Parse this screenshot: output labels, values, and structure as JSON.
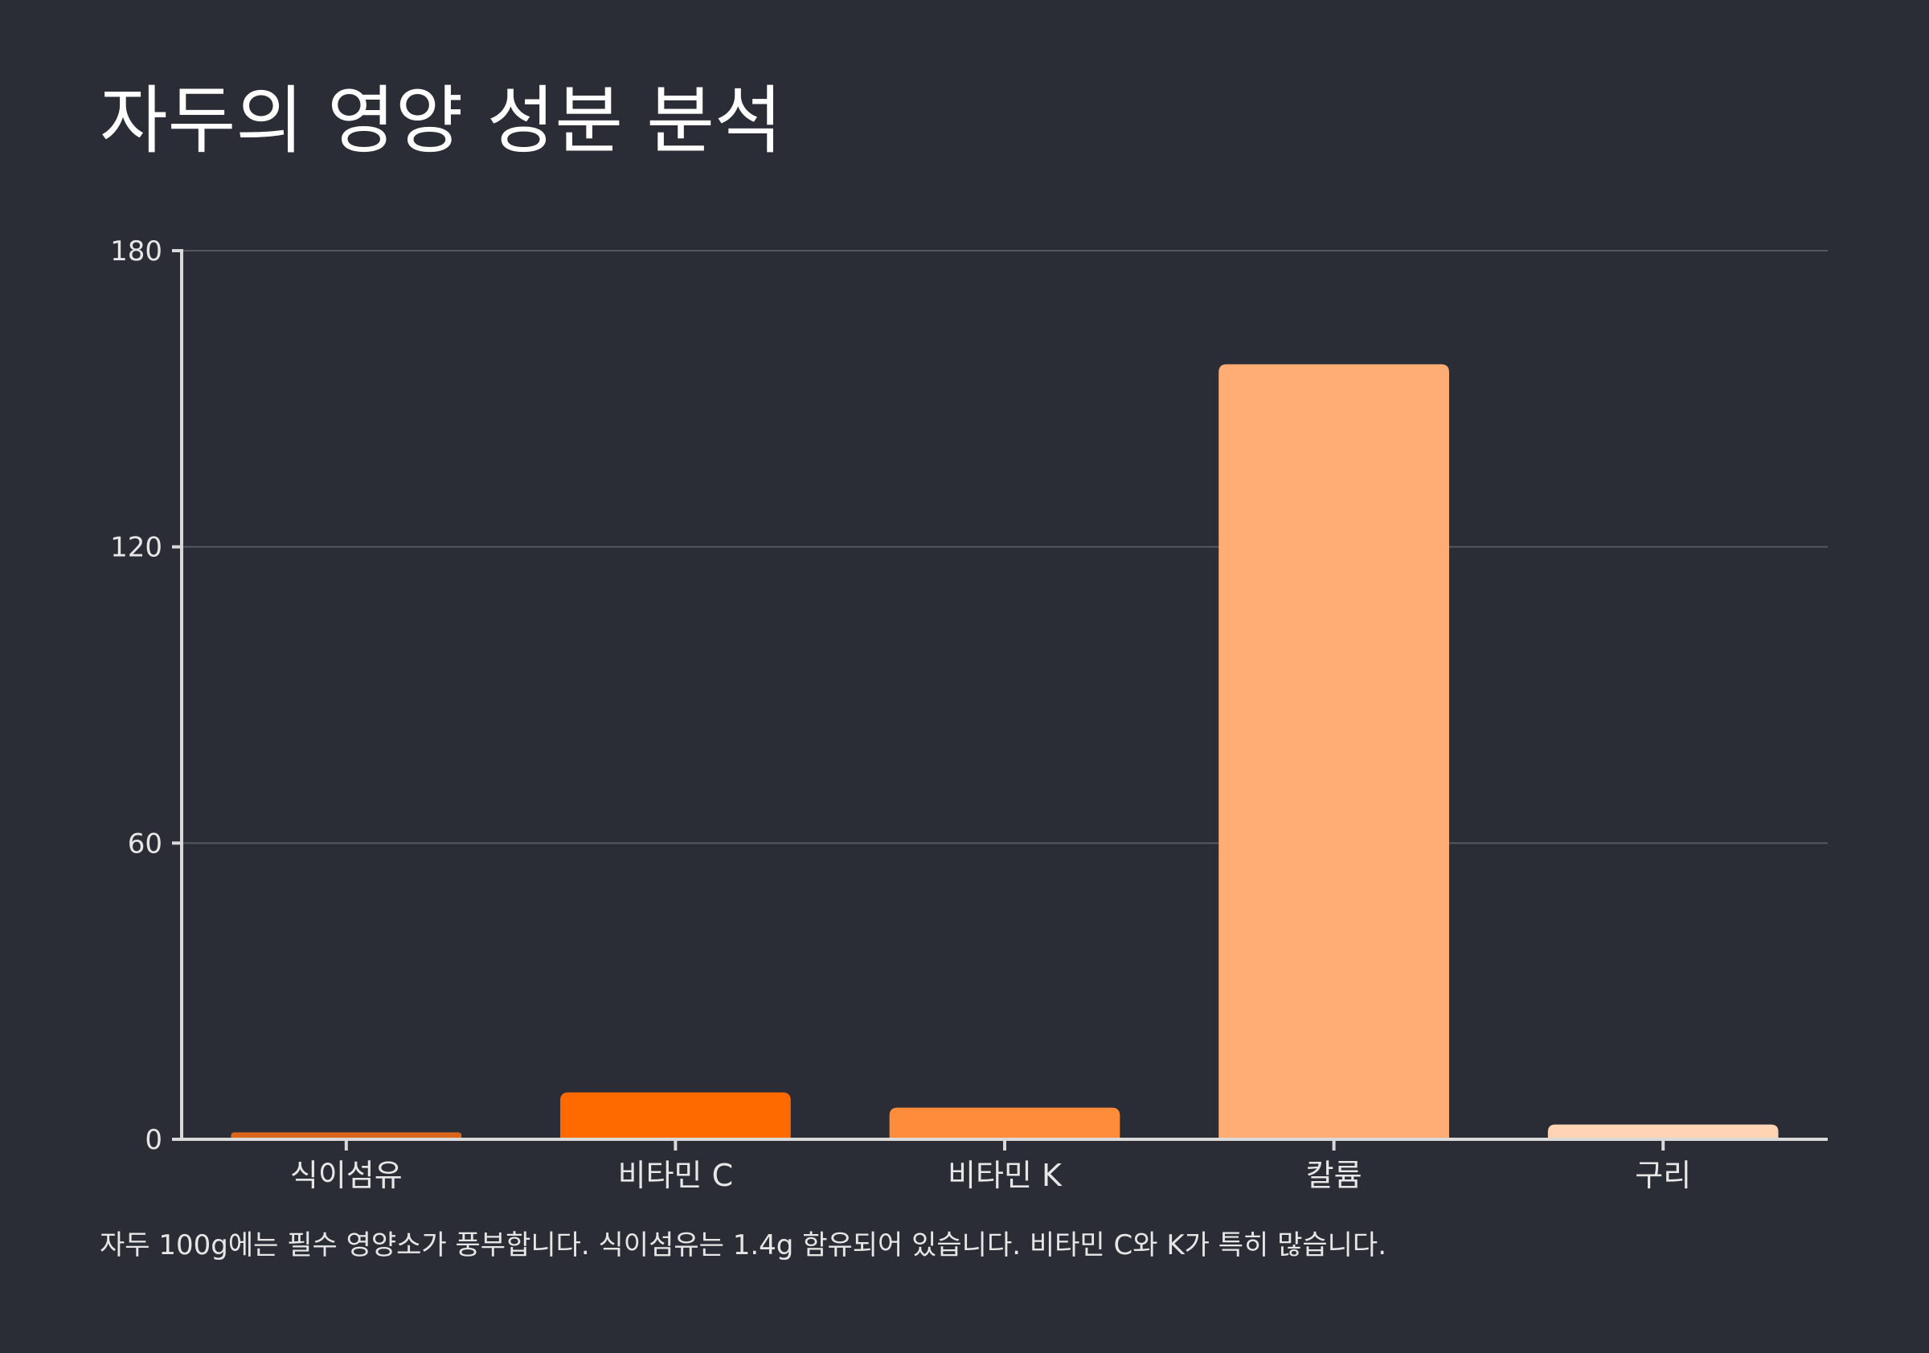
{
  "colors": {
    "background": "#2a2d35",
    "axis": "#d9d9d9",
    "grid": "#55585e",
    "text": "#e6e6e6"
  },
  "chart_data": {
    "type": "bar",
    "title": "자두의 영양 성분 분석",
    "caption": "자두 100g에는 필수 영양소가 풍부합니다. 식이섬유는 1.4g 함유되어 있습니다. 비타민 C와 K가 특히 많습니다.",
    "categories": [
      "식이섬유",
      "비타민 C",
      "비타민 K",
      "칼륨",
      "구리"
    ],
    "values": [
      1.4,
      9.5,
      6.4,
      157,
      3
    ],
    "bar_colors": [
      "#d9661a",
      "#ff6a00",
      "#ff8c3a",
      "#ffad75",
      "#ffd4b5"
    ],
    "ylim": [
      0,
      180
    ],
    "yticks": [
      0,
      60,
      120,
      180
    ],
    "xlabel": "",
    "ylabel": "",
    "grid": true
  }
}
